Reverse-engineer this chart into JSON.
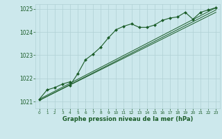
{
  "bg_color": "#cce8ec",
  "grid_color": "#b0d0d4",
  "line_color": "#1a5c28",
  "xlabel": "Graphe pression niveau de la mer (hPa)",
  "xlim": [
    -0.5,
    23.5
  ],
  "ylim": [
    1020.7,
    1025.2
  ],
  "yticks": [
    1021,
    1022,
    1023,
    1024,
    1025
  ],
  "xticks": [
    0,
    1,
    2,
    3,
    4,
    5,
    6,
    7,
    8,
    9,
    10,
    11,
    12,
    13,
    14,
    15,
    16,
    17,
    18,
    19,
    20,
    21,
    22,
    23
  ],
  "series_jagged": {
    "x": [
      0,
      1,
      2,
      3,
      4,
      4,
      5,
      6,
      7,
      8,
      9,
      10,
      11,
      12,
      13,
      14,
      15,
      16,
      17,
      18,
      19,
      20,
      21,
      22,
      23
    ],
    "y": [
      1021.1,
      1021.5,
      1021.6,
      1021.75,
      1021.85,
      1021.7,
      1022.2,
      1022.8,
      1023.05,
      1023.35,
      1023.75,
      1024.1,
      1024.25,
      1024.35,
      1024.2,
      1024.2,
      1024.3,
      1024.5,
      1024.6,
      1024.65,
      1024.85,
      1024.55,
      1024.85,
      1024.95,
      1025.05
    ]
  },
  "series_straight1": {
    "x": [
      0,
      23
    ],
    "y": [
      1021.05,
      1024.85
    ]
  },
  "series_straight2": {
    "x": [
      0,
      23
    ],
    "y": [
      1021.1,
      1025.05
    ]
  },
  "series_straight3": {
    "x": [
      0,
      23
    ],
    "y": [
      1021.05,
      1024.95
    ]
  }
}
